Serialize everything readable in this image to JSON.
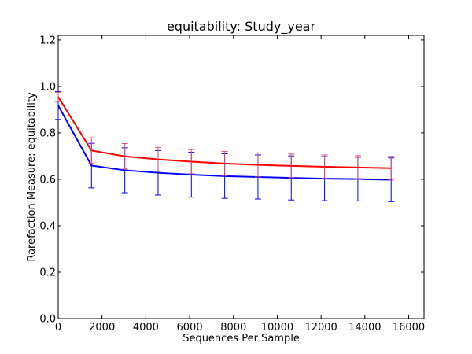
{
  "chart_data": {
    "type": "line",
    "title": "equitability: Study_year",
    "xlabel": "Sequences Per Sample",
    "ylabel": "Rarefaction Measure: equitability",
    "xlim": [
      0,
      16700
    ],
    "ylim": [
      0.0,
      1.22
    ],
    "xticks": [
      0,
      2000,
      4000,
      6000,
      8000,
      10000,
      12000,
      14000,
      16000
    ],
    "yticks": [
      0.0,
      0.2,
      0.4,
      0.6,
      0.8,
      1.0,
      1.2
    ],
    "x": [
      0,
      1520,
      3040,
      4560,
      6080,
      7600,
      9120,
      10640,
      12160,
      13680,
      15200
    ],
    "series": [
      {
        "color": "#ff0000",
        "errcolor": "#e05070",
        "values": [
          0.955,
          0.724,
          0.699,
          0.686,
          0.676,
          0.668,
          0.662,
          0.658,
          0.654,
          0.651,
          0.648
        ],
        "err": [
          0.02,
          0.055,
          0.055,
          0.052,
          0.052,
          0.052,
          0.052,
          0.051,
          0.051,
          0.051,
          0.051
        ]
      },
      {
        "color": "#0000ff",
        "errcolor": "#0000ff",
        "values": [
          0.918,
          0.659,
          0.639,
          0.628,
          0.62,
          0.614,
          0.61,
          0.606,
          0.603,
          0.601,
          0.598
        ],
        "err": [
          0.06,
          0.096,
          0.097,
          0.096,
          0.097,
          0.096,
          0.095,
          0.095,
          0.095,
          0.094,
          0.094
        ]
      }
    ]
  }
}
